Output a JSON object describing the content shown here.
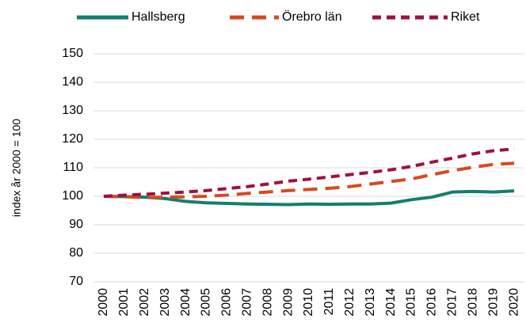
{
  "chart_data": {
    "type": "line",
    "y_label": "index år 2000 = 100",
    "categories": [
      "2000",
      "2001",
      "2002",
      "2003",
      "2004",
      "2005",
      "2006",
      "2007",
      "2008",
      "2009",
      "2010",
      "2011",
      "2012",
      "2013",
      "2014",
      "2015",
      "2016",
      "2017",
      "2018",
      "2019",
      "2020"
    ],
    "series": [
      {
        "name": "Hallsberg",
        "color": "#11806e",
        "dash": "solid",
        "values": [
          100,
          99.9,
          99.7,
          99.2,
          98.2,
          97.7,
          97.5,
          97.3,
          97.2,
          97.1,
          97.3,
          97.2,
          97.3,
          97.3,
          97.6,
          98.8,
          99.7,
          101.5,
          101.7,
          101.5,
          101.9
        ]
      },
      {
        "name": "Örebro län",
        "color": "#d9491c",
        "dash": "long",
        "values": [
          100,
          99.8,
          99.6,
          99.7,
          99.8,
          100.0,
          100.4,
          101.0,
          101.5,
          102.0,
          102.4,
          102.8,
          103.4,
          104.3,
          105.2,
          106.1,
          107.6,
          109.0,
          110.2,
          111.2,
          111.6
        ]
      },
      {
        "name": "Riket",
        "color": "#a0103f",
        "dash": "short",
        "values": [
          100,
          100.4,
          100.7,
          101.1,
          101.5,
          102.0,
          102.7,
          103.4,
          104.3,
          105.3,
          106.0,
          106.8,
          107.6,
          108.4,
          109.3,
          110.5,
          112.0,
          113.4,
          114.9,
          116.0,
          116.6
        ]
      }
    ],
    "ylim": [
      70,
      150
    ],
    "yticks": [
      70,
      80,
      90,
      100,
      110,
      120,
      130,
      140,
      150
    ],
    "grid": true,
    "legend": "top"
  }
}
